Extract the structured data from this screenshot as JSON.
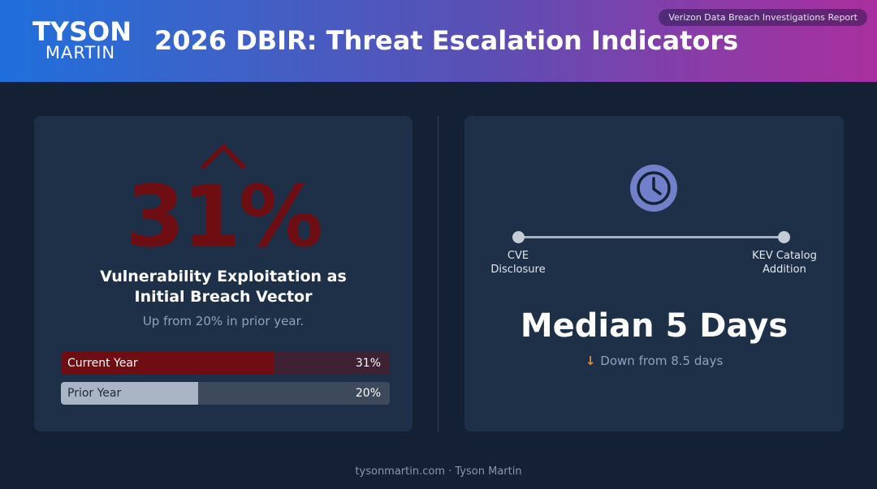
{
  "header": {
    "logo_top": "TYSON",
    "logo_bottom": "MARTIN",
    "title": "2026 DBIR: Threat Escalation Indicators",
    "source": "Verizon Data Breach Investigations Report"
  },
  "left_card": {
    "big_value": "31%",
    "label_line1": "Vulnerability Exploitation as",
    "label_line2": "Initial Breach Vector",
    "subtitle": "Up from 20% in prior year.",
    "bars": [
      {
        "label": "Current Year",
        "value_label": "31%",
        "percent": 31,
        "color": "#6e0d12"
      },
      {
        "label": "Prior Year",
        "value_label": "20%",
        "percent": 20,
        "color": "#a9b4c4"
      }
    ],
    "caret_icon": "chevron-up-icon"
  },
  "right_card": {
    "icon": "clock-icon",
    "timeline_start_line1": "CVE",
    "timeline_start_line2": "Disclosure",
    "timeline_end_line1": "KEV Catalog",
    "timeline_end_line2": "Addition",
    "headline": "Median 5 Days",
    "change_arrow": "↓",
    "change_text": "Down from 8.5 days"
  },
  "footer": {
    "text": "tysonmartin.com · Tyson Martin"
  },
  "colors": {
    "background": "#142033",
    "card": "#1e3048",
    "accent_red": "#6e0d12",
    "clock": "#7180c9",
    "down_arrow": "#e58a2e"
  }
}
